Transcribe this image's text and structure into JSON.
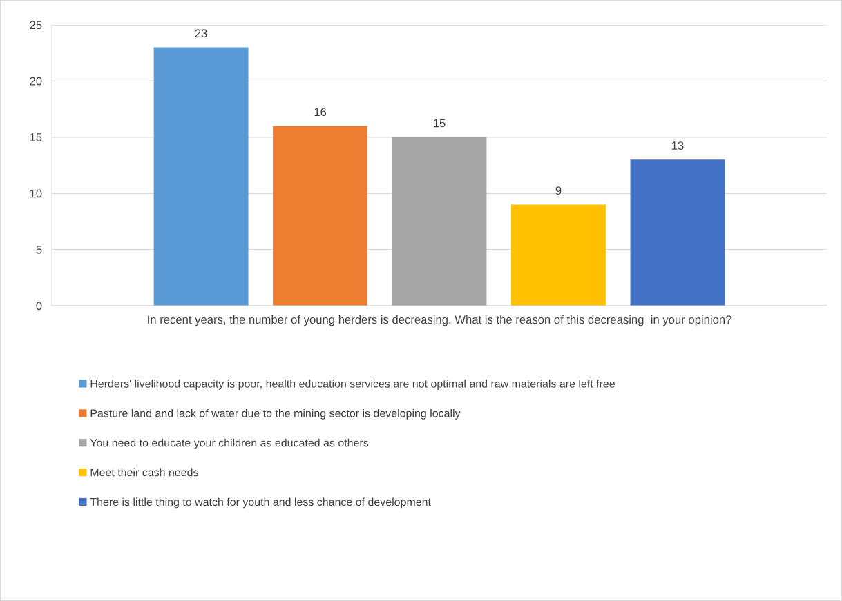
{
  "chart_data": {
    "type": "bar",
    "categories": [
      "In recent years, the number of young herders is decreasing. What is the reason of this decreasing  in your opinion?"
    ],
    "series": [
      {
        "name": "Herders' livelihood capacity is poor, health education services are not optimal and raw materials are left free",
        "color": "#5b9bd5",
        "values": [
          23
        ]
      },
      {
        "name": "Pasture land and lack of water due to the mining sector is developing locally",
        "color": "#ed7d31",
        "values": [
          16
        ]
      },
      {
        "name": "You need to educate your children as educated as others",
        "color": "#a5a5a5",
        "values": [
          15
        ]
      },
      {
        "name": "Meet their cash needs",
        "color": "#ffc000",
        "values": [
          9
        ]
      },
      {
        "name": "There is little thing to watch for youth and less chance of development",
        "color": "#4472c4",
        "values": [
          13
        ]
      }
    ],
    "ylim": [
      0,
      25
    ],
    "yticks": [
      0,
      5,
      10,
      15,
      20,
      25
    ],
    "grid": "y",
    "legend": "bottom",
    "data_labels": true
  }
}
